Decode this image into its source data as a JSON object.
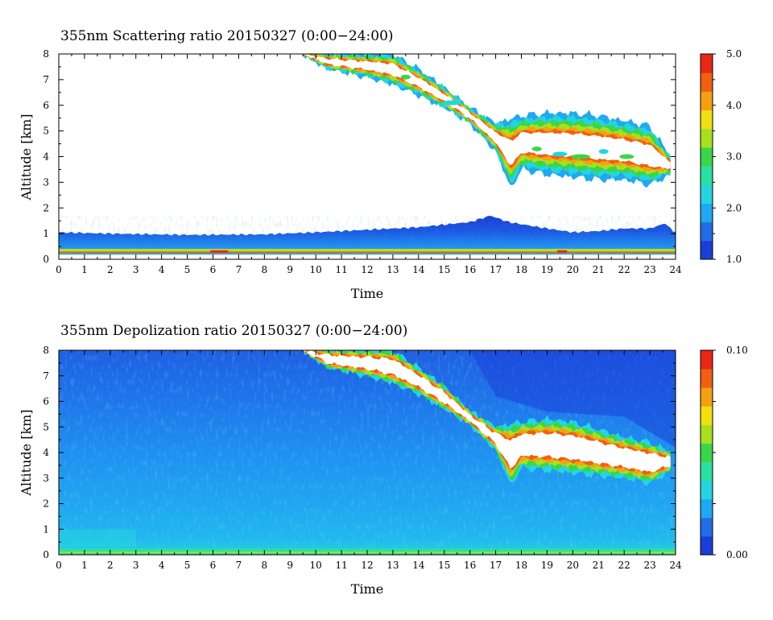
{
  "chart_data": [
    {
      "type": "heatmap",
      "title": "355nm Scattering ratio  20150327 (0:00−24:00)",
      "xlabel": "Time",
      "ylabel": "Altitude [km]",
      "xlim": [
        0,
        24
      ],
      "ylim": [
        0,
        8
      ],
      "x_ticks": [
        "0",
        "1",
        "2",
        "3",
        "4",
        "5",
        "6",
        "7",
        "8",
        "9",
        "10",
        "11",
        "12",
        "13",
        "14",
        "15",
        "16",
        "17",
        "18",
        "19",
        "20",
        "21",
        "22",
        "23",
        "24"
      ],
      "y_ticks": [
        "0",
        "1",
        "2",
        "3",
        "4",
        "5",
        "6",
        "7",
        "8"
      ],
      "colorbar": {
        "range": [
          1.0,
          5.0
        ],
        "tick_labels": [
          "5.0",
          "4.0",
          "3.0",
          "2.0",
          "1.0"
        ],
        "tick_values": [
          5.0,
          4.0,
          3.0,
          2.0,
          1.0
        ]
      },
      "features": {
        "boundary_layer_top_km": [
          [
            0,
            1.05
          ],
          [
            2,
            1.0
          ],
          [
            5,
            0.95
          ],
          [
            8,
            0.97
          ],
          [
            10,
            1.05
          ],
          [
            12,
            1.15
          ],
          [
            14,
            1.25
          ],
          [
            15,
            1.35
          ],
          [
            16,
            1.45
          ],
          [
            16.8,
            1.7
          ],
          [
            17.5,
            1.45
          ],
          [
            19,
            1.2
          ],
          [
            20,
            1.05
          ],
          [
            21,
            1.1
          ],
          [
            22,
            1.2
          ],
          [
            23,
            1.2
          ],
          [
            23.6,
            1.4
          ],
          [
            23.9,
            1.1
          ]
        ],
        "surface_layer_km": [
          0.28,
          0.4
        ],
        "cloud_base_km": [
          [
            9.5,
            8.0
          ],
          [
            10.5,
            7.4
          ],
          [
            12,
            7.1
          ],
          [
            13,
            6.8
          ],
          [
            14,
            6.4
          ],
          [
            15,
            5.9
          ],
          [
            16,
            5.3
          ],
          [
            17,
            4.2
          ],
          [
            17.6,
            2.75
          ],
          [
            18,
            3.5
          ],
          [
            19,
            3.3
          ],
          [
            20,
            3.2
          ],
          [
            21,
            3.1
          ],
          [
            22,
            3.1
          ],
          [
            23,
            2.9
          ],
          [
            23.8,
            3.3
          ]
        ],
        "cloud_top_km": [
          [
            9.5,
            8.0
          ],
          [
            11,
            8.0
          ],
          [
            13,
            8.0
          ],
          [
            14,
            7.4
          ],
          [
            15,
            6.7
          ],
          [
            16,
            5.9
          ],
          [
            17,
            5.3
          ],
          [
            18,
            5.6
          ],
          [
            19,
            5.7
          ],
          [
            20,
            5.7
          ],
          [
            21,
            5.6
          ],
          [
            22,
            5.4
          ],
          [
            23,
            5.2
          ],
          [
            23.8,
            4.0
          ]
        ]
      }
    },
    {
      "type": "heatmap",
      "title": "355nm Depolization ratio  20150327 (0:00−24:00)",
      "xlabel": "Time",
      "ylabel": "Altitude [km]",
      "xlim": [
        0,
        24
      ],
      "ylim": [
        0,
        8
      ],
      "x_ticks": [
        "0",
        "1",
        "2",
        "3",
        "4",
        "5",
        "6",
        "7",
        "8",
        "9",
        "10",
        "11",
        "12",
        "13",
        "14",
        "15",
        "16",
        "17",
        "18",
        "19",
        "20",
        "21",
        "22",
        "23",
        "24"
      ],
      "y_ticks": [
        "0",
        "1",
        "2",
        "3",
        "4",
        "5",
        "6",
        "7",
        "8"
      ],
      "colorbar": {
        "range": [
          0.0,
          0.1
        ],
        "tick_labels": [
          "0.10",
          "0.00"
        ],
        "tick_values": [
          0.1,
          0.0
        ]
      },
      "features": {
        "cloud_base_km": [
          [
            9.5,
            8.0
          ],
          [
            10.5,
            7.3
          ],
          [
            12,
            7.0
          ],
          [
            13,
            6.7
          ],
          [
            14,
            6.3
          ],
          [
            15,
            5.7
          ],
          [
            16,
            5.1
          ],
          [
            17,
            4.1
          ],
          [
            17.6,
            2.7
          ],
          [
            18,
            3.4
          ],
          [
            19,
            3.3
          ],
          [
            20,
            3.2
          ],
          [
            21,
            3.1
          ],
          [
            22,
            3.0
          ],
          [
            23,
            2.8
          ],
          [
            23.8,
            3.3
          ]
        ],
        "cloud_top_km": [
          [
            9.5,
            8.0
          ],
          [
            11,
            8.0
          ],
          [
            13,
            8.0
          ],
          [
            14,
            7.3
          ],
          [
            15,
            6.6
          ],
          [
            16,
            5.6
          ],
          [
            17,
            5.0
          ],
          [
            18,
            5.2
          ],
          [
            19,
            5.3
          ],
          [
            20,
            5.2
          ],
          [
            21,
            4.9
          ],
          [
            22,
            4.6
          ],
          [
            23,
            4.4
          ],
          [
            23.8,
            4.0
          ]
        ]
      }
    }
  ],
  "colors": {
    "colormap": [
      "#1a3fd8",
      "#1f6ee8",
      "#1fa9f0",
      "#24d5e0",
      "#2be0a0",
      "#3ad64a",
      "#a8e01e",
      "#f0e010",
      "#f5a010",
      "#f06010",
      "#e82814"
    ],
    "saturated": "#ffffff",
    "axes": "#000000"
  }
}
